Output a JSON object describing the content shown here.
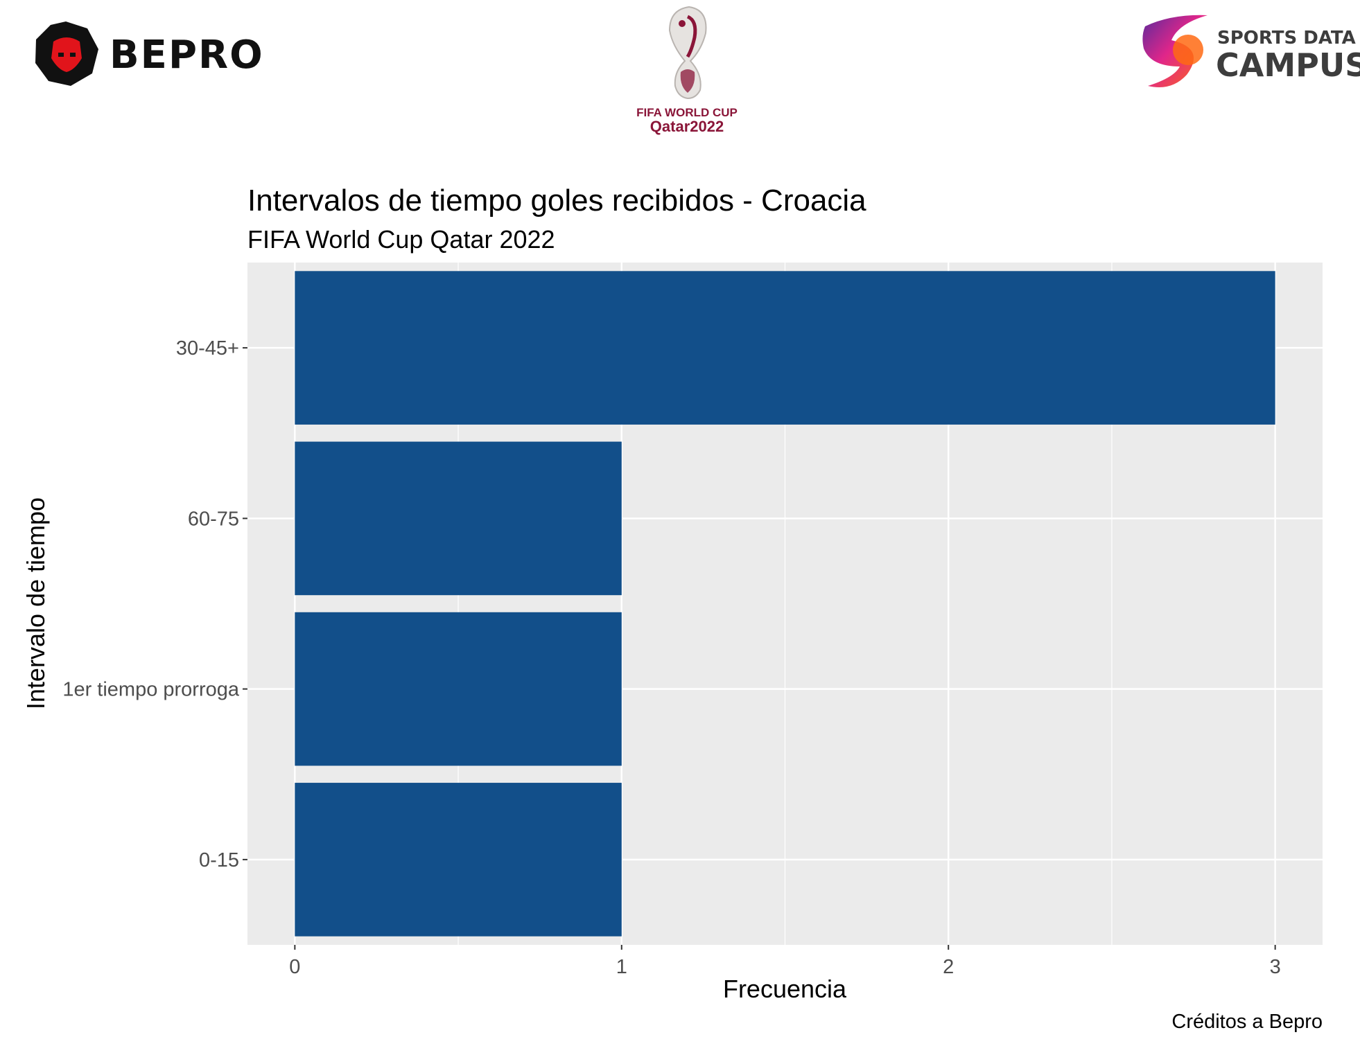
{
  "logos": {
    "left": {
      "name": "BEPRO"
    },
    "center": {
      "line1": "FIFA WORLD CUP",
      "line2": "Qatar2022"
    },
    "right": {
      "line1": "SPORTS DATA",
      "line2": "CAMPUS"
    }
  },
  "colors": {
    "bar": "#124F8A",
    "panel": "#EBEBEB",
    "grid": "#FFFFFF",
    "bepro_red": "#E1141B",
    "fifa_maroon": "#8A1538"
  },
  "chart_data": {
    "type": "bar",
    "orientation": "horizontal",
    "title": "Intervalos de tiempo goles recibidos - Croacia",
    "subtitle": "FIFA World Cup Qatar 2022",
    "xlabel": "Frecuencia",
    "ylabel": "Intervalo de tiempo",
    "caption": "Créditos a Bepro",
    "categories": [
      "30-45+",
      "60-75",
      "1er tiempo prorroga",
      "0-15"
    ],
    "values": [
      3,
      1,
      1,
      1
    ],
    "xlim": [
      -0.145,
      3.145
    ],
    "xticks": [
      "0",
      "1",
      "2",
      "3"
    ],
    "grid": true,
    "legend": "none"
  }
}
